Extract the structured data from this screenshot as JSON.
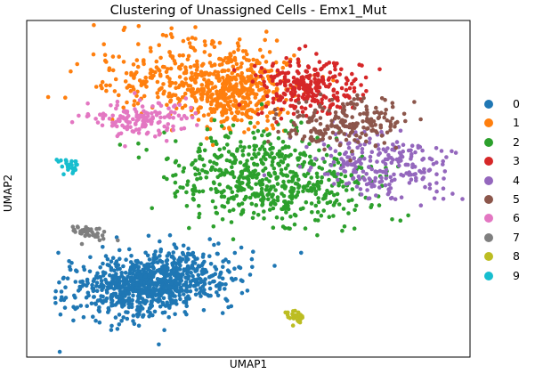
{
  "chart_data": {
    "type": "scatter",
    "title": "Clustering of Unassigned Cells - Emx1_Mut",
    "xlabel": "UMAP1",
    "ylabel": "UMAP2",
    "legend_position": "right",
    "axis_ticks": false,
    "grid": false,
    "xlim": [
      0,
      100
    ],
    "ylim": [
      0,
      100
    ],
    "series": [
      {
        "name": "0",
        "color": "#1f77b4",
        "n": 900,
        "clusters": [
          {
            "cx": 28,
            "cy": 22,
            "sx": 9,
            "sy": 4.5,
            "rot": 12
          }
        ]
      },
      {
        "name": "1",
        "color": "#ff7f0e",
        "n": 650,
        "clusters": [
          {
            "cx": 37,
            "cy": 84,
            "sx": 11,
            "sy": 6,
            "rot": 0
          },
          {
            "cx": 47,
            "cy": 78,
            "sx": 6,
            "sy": 5,
            "rot": 0
          }
        ]
      },
      {
        "name": "2",
        "color": "#2ca02c",
        "n": 600,
        "clusters": [
          {
            "cx": 55,
            "cy": 53,
            "sx": 11,
            "sy": 6.5,
            "rot": -8
          }
        ]
      },
      {
        "name": "3",
        "color": "#d62728",
        "n": 260,
        "clusters": [
          {
            "cx": 63,
            "cy": 80,
            "sx": 5.5,
            "sy": 4.5,
            "rot": 0
          }
        ]
      },
      {
        "name": "4",
        "color": "#9467bd",
        "n": 230,
        "clusters": [
          {
            "cx": 79,
            "cy": 57,
            "sx": 8,
            "sy": 5,
            "rot": -15
          }
        ]
      },
      {
        "name": "5",
        "color": "#8c564b",
        "n": 200,
        "clusters": [
          {
            "cx": 72,
            "cy": 69,
            "sx": 7,
            "sy": 3.5,
            "rot": 10
          }
        ]
      },
      {
        "name": "6",
        "color": "#e377c2",
        "n": 150,
        "clusters": [
          {
            "cx": 26,
            "cy": 71,
            "sx": 5,
            "sy": 2.5,
            "rot": 0
          }
        ]
      },
      {
        "name": "7",
        "color": "#7f7f7f",
        "n": 40,
        "clusters": [
          {
            "cx": 14,
            "cy": 37,
            "sx": 2,
            "sy": 1.2,
            "rot": -10
          }
        ]
      },
      {
        "name": "8",
        "color": "#bcbd22",
        "n": 30,
        "clusters": [
          {
            "cx": 61,
            "cy": 12,
            "sx": 1.1,
            "sy": 0.8,
            "rot": 0
          }
        ]
      },
      {
        "name": "9",
        "color": "#17becf",
        "n": 25,
        "clusters": [
          {
            "cx": 9,
            "cy": 57,
            "sx": 1.3,
            "sy": 1.2,
            "rot": 0
          }
        ]
      }
    ]
  }
}
